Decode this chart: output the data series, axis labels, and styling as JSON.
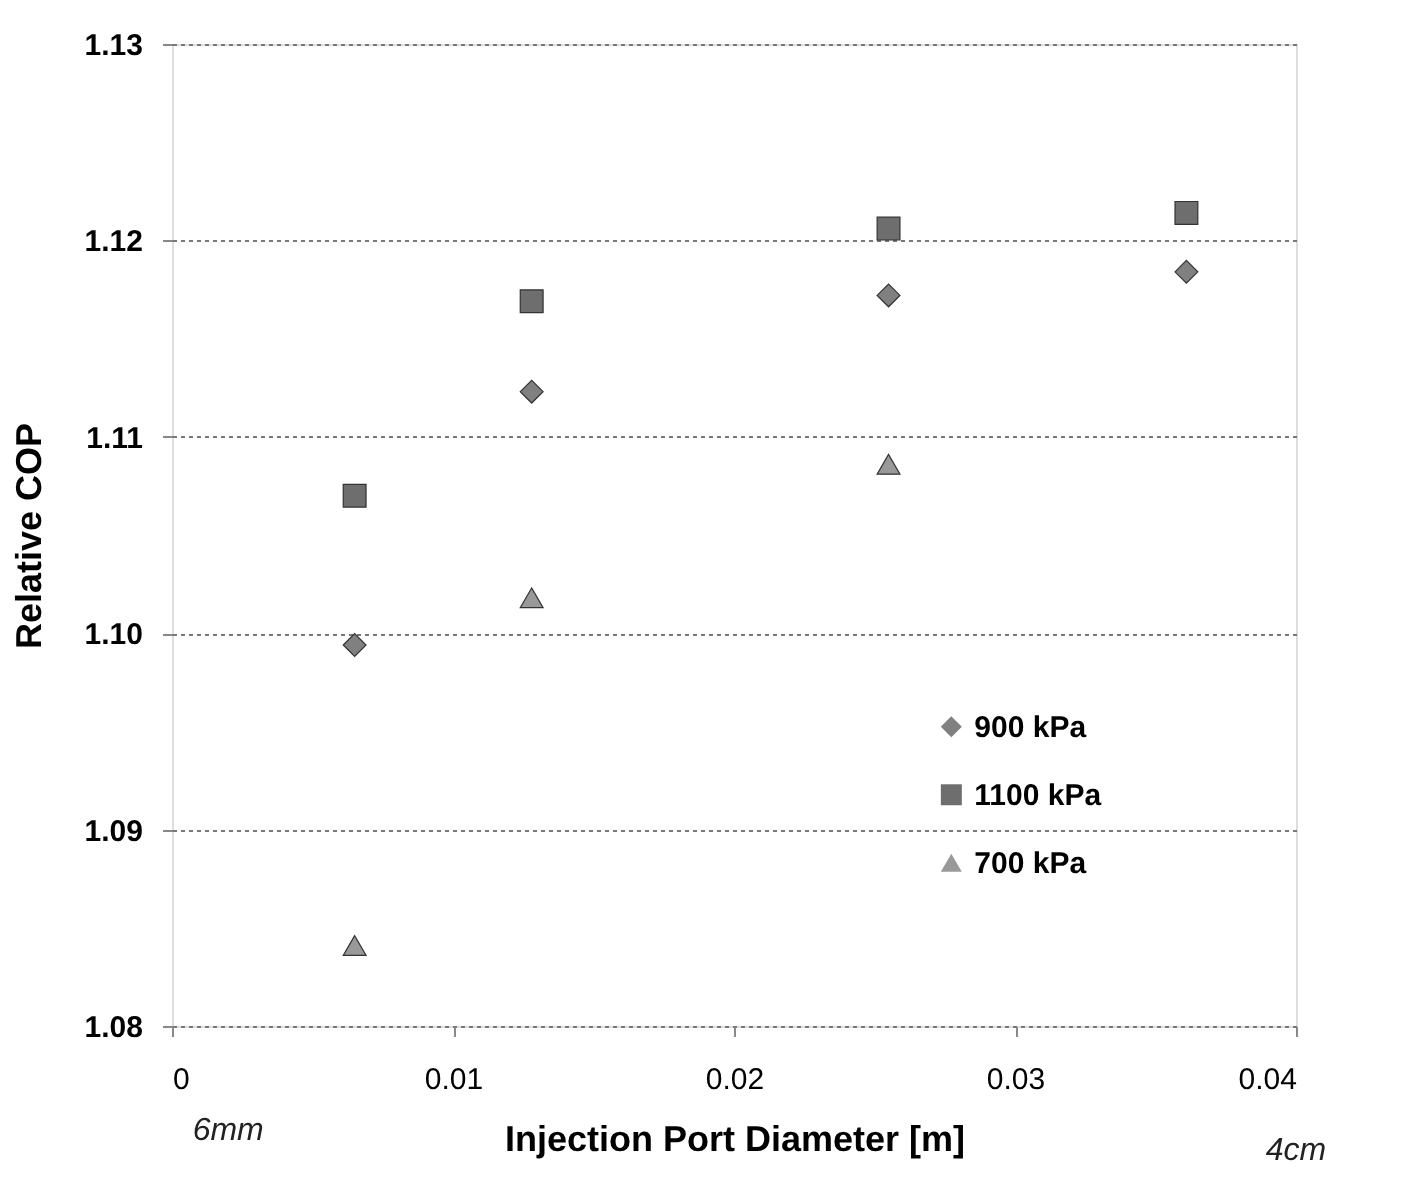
{
  "chart_data": {
    "type": "scatter",
    "xlabel": "Injection Port Diameter [m]",
    "ylabel": "Relative COP",
    "xlim": [
      0,
      0.04
    ],
    "xticks": [
      0,
      0.01,
      0.02,
      0.03,
      0.04
    ],
    "ylim": [
      1.08,
      1.13
    ],
    "yticks": [
      {
        "value": 1.08,
        "label": "1.08"
      },
      {
        "value": 1.09,
        "label": "1.09"
      },
      {
        "value": 1.1,
        "label": "1.10"
      },
      {
        "value": 1.11,
        "label": "1.11"
      },
      {
        "value": 1.12,
        "label": "1.12"
      },
      {
        "value": 1.13,
        "label": "1.13"
      }
    ],
    "grid": "y",
    "legend": "bottom right",
    "series": [
      {
        "name": "900 kPa",
        "color": "#808080",
        "marker": "diamond",
        "x": [
          0.0065,
          0.0128,
          0.0255,
          0.0361
        ],
        "values": [
          1.0994,
          1.1123,
          1.1172,
          1.1184
        ]
      },
      {
        "name": "1100 kPa",
        "color": "#6e6e6e",
        "marker": "square",
        "x": [
          0.0065,
          0.0128,
          0.0255,
          0.0361
        ],
        "values": [
          1.107,
          1.1169,
          1.1206,
          1.1214
        ]
      },
      {
        "name": "700 kPa",
        "color": "#999999",
        "marker": "triangle",
        "x": [
          0.0065,
          0.0128,
          0.0255
        ],
        "values": [
          1.0841,
          1.1018,
          1.1086
        ]
      }
    ],
    "annotations": [
      "6mm",
      "4cm"
    ]
  }
}
